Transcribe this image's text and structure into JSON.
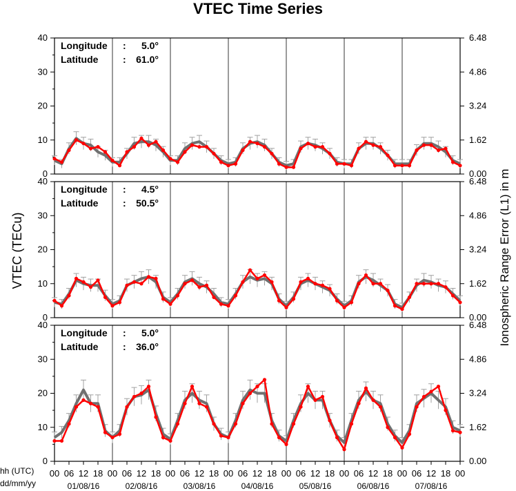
{
  "chart_data": {
    "type": "line",
    "title": "VTEC Time Series",
    "ylabel_left": "VTEC (TECu)",
    "ylabel_right": "Ionospheric Range Error (L1) in m",
    "x_row1_label": "hh (UTC)",
    "x_row2_label": "dd/mm/yy",
    "x_hour_ticks": [
      "00",
      "06",
      "12",
      "18",
      "00",
      "06",
      "12",
      "18",
      "00",
      "06",
      "12",
      "18",
      "00",
      "06",
      "12",
      "18",
      "00",
      "06",
      "12",
      "18",
      "00",
      "06",
      "12",
      "18",
      "00",
      "06",
      "12",
      "18",
      "00"
    ],
    "x_day_labels": [
      "01/08/16",
      "02/08/16",
      "03/08/16",
      "04/08/16",
      "05/08/16",
      "06/08/16",
      "07/08/16"
    ],
    "x_range_hours": [
      0,
      168
    ],
    "ylim": [
      0,
      40
    ],
    "yticks": [
      0,
      10,
      20,
      30,
      40
    ],
    "ylim_right": [
      0,
      6.48
    ],
    "yticks_right": [
      "0.00",
      "1.62",
      "3.24",
      "4.86",
      "6.48"
    ],
    "series_colors": {
      "observed": "#ff0000",
      "model": "#707070",
      "errorbars": "#a0a0a0"
    },
    "panels": [
      {
        "longitude_label": "Longitude",
        "longitude": "5.0°",
        "latitude_label": "Latitude",
        "latitude": "61.0°",
        "x_hours": [
          0,
          3,
          6,
          9,
          12,
          15,
          18,
          21,
          24,
          27,
          30,
          33,
          36,
          39,
          42,
          45,
          48,
          51,
          54,
          57,
          60,
          63,
          66,
          69,
          72,
          75,
          78,
          81,
          84,
          87,
          90,
          93,
          96,
          99,
          102,
          105,
          108,
          111,
          114,
          117,
          120,
          123,
          126,
          129,
          132,
          135,
          138,
          141,
          144,
          147,
          150,
          153,
          156,
          159,
          162,
          165,
          168
        ],
        "observed": [
          4.5,
          3.5,
          7,
          10,
          9,
          7.5,
          8,
          6.5,
          4,
          2.5,
          6.5,
          8,
          10.5,
          8.5,
          9.5,
          7,
          4.5,
          3.5,
          6.5,
          8.5,
          8,
          8,
          6,
          3.5,
          2.5,
          3,
          7,
          9.5,
          9,
          8,
          6,
          3,
          2,
          2,
          7.5,
          9,
          8,
          8,
          6,
          3,
          3,
          2.5,
          7.5,
          9.5,
          8.5,
          8,
          5.5,
          2.5,
          2.5,
          2.5,
          7,
          8.5,
          8.5,
          7,
          7.5,
          3.5,
          2.5
        ],
        "model": [
          4,
          3,
          7.5,
          10.5,
          9,
          8.5,
          6.5,
          5.5,
          3.5,
          3.5,
          6,
          9,
          9.5,
          9.5,
          8.5,
          6.5,
          4,
          4,
          7.5,
          9,
          9.5,
          8,
          6,
          4,
          3,
          3.5,
          7.5,
          9,
          9.5,
          8.5,
          6,
          3.5,
          2.5,
          3,
          8,
          9,
          8.5,
          7.5,
          6,
          3.5,
          3,
          3,
          7.5,
          9,
          9,
          7.5,
          5.5,
          3,
          3,
          3,
          7,
          9,
          9,
          8,
          6.5,
          4,
          3
        ]
      },
      {
        "longitude_label": "Longitude",
        "longitude": "4.5°",
        "latitude_label": "Latitude",
        "latitude": "50.5°",
        "x_hours": [
          0,
          3,
          6,
          9,
          12,
          15,
          18,
          21,
          24,
          27,
          30,
          33,
          36,
          39,
          42,
          45,
          48,
          51,
          54,
          57,
          60,
          63,
          66,
          69,
          72,
          75,
          78,
          81,
          84,
          87,
          90,
          93,
          96,
          99,
          102,
          105,
          108,
          111,
          114,
          117,
          120,
          123,
          126,
          129,
          132,
          135,
          138,
          141,
          144,
          147,
          150,
          153,
          156,
          159,
          162,
          165,
          168
        ],
        "observed": [
          5,
          3.5,
          6.5,
          11.5,
          10.5,
          9,
          11,
          6,
          3.5,
          4.5,
          9.5,
          10.5,
          10,
          12,
          11.5,
          5.5,
          4,
          6.5,
          10,
          11,
          9,
          9.5,
          6,
          4,
          3.5,
          6.5,
          10.5,
          14,
          11.5,
          12.5,
          10.5,
          5,
          3,
          5.5,
          10.5,
          11.5,
          10,
          9.5,
          8.5,
          5,
          3,
          4.5,
          10,
          12.5,
          10,
          10,
          8,
          3.5,
          2.5,
          6,
          10,
          10,
          10,
          10,
          9,
          6.5,
          4.5
        ],
        "model": [
          4.5,
          4,
          7,
          11,
          10,
          9.5,
          9.5,
          6.5,
          4,
          5,
          9.5,
          10.5,
          11.5,
          12,
          10.5,
          6,
          4.5,
          7,
          10.5,
          11.5,
          10,
          9,
          7,
          4.5,
          4,
          7,
          10.5,
          12,
          11,
          11.5,
          10,
          5.5,
          3.5,
          6,
          10,
          11,
          10,
          9,
          8,
          5.5,
          3.5,
          5,
          10.5,
          12,
          11,
          9.5,
          8,
          4,
          3,
          6,
          9.5,
          11,
          10.5,
          9.5,
          9,
          7,
          5
        ]
      },
      {
        "longitude_label": "Longitude",
        "longitude": "5.0°",
        "latitude_label": "Latitude",
        "latitude": "36.0°",
        "x_hours": [
          0,
          3,
          6,
          9,
          12,
          15,
          18,
          21,
          24,
          27,
          30,
          33,
          36,
          39,
          42,
          45,
          48,
          51,
          54,
          57,
          60,
          63,
          66,
          69,
          72,
          75,
          78,
          81,
          84,
          87,
          90,
          93,
          96,
          99,
          102,
          105,
          108,
          111,
          114,
          117,
          120,
          123,
          126,
          129,
          132,
          135,
          138,
          141,
          144,
          147,
          150,
          153,
          156,
          159,
          162,
          165,
          168
        ],
        "observed": [
          6,
          6,
          11,
          16,
          18,
          17,
          16,
          8.5,
          7,
          8,
          16,
          19,
          20,
          22,
          13,
          7,
          6,
          11,
          17,
          22,
          17,
          16,
          11,
          7.5,
          7,
          11,
          17,
          20,
          22,
          24,
          11,
          7,
          5,
          11,
          16,
          22,
          18,
          19,
          12,
          7,
          3.5,
          11,
          17,
          21.5,
          18,
          16,
          10,
          7,
          4,
          8,
          16,
          19,
          20.5,
          22,
          15,
          9,
          8.5
        ],
        "model": [
          7,
          8.5,
          12,
          17,
          21,
          17,
          17,
          9,
          7,
          9,
          16,
          19,
          19.5,
          21,
          14,
          8,
          6.5,
          12,
          18,
          20,
          18,
          17,
          11,
          8,
          7,
          12,
          18,
          21,
          20,
          20,
          12,
          7.5,
          6,
          12,
          17,
          20,
          18,
          18,
          12,
          7.5,
          5.5,
          12,
          18,
          20.5,
          18,
          17,
          11,
          7.5,
          5.5,
          9,
          17,
          18.5,
          20,
          18,
          16,
          10,
          9
        ]
      }
    ]
  }
}
